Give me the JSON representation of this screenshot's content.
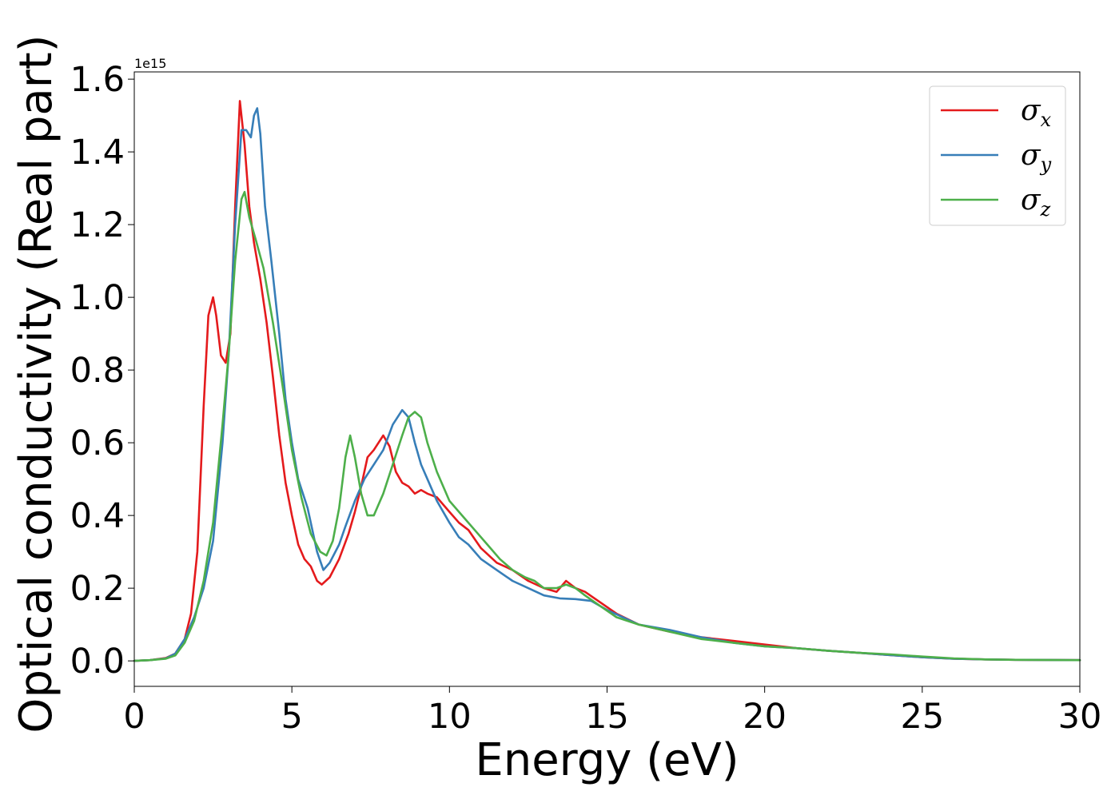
{
  "chart_data": {
    "type": "line",
    "title": "",
    "xlabel": "Energy (eV)",
    "ylabel": "Optical conductivity (Real part)",
    "y_offset_label": "1e15",
    "xlim": [
      0,
      30
    ],
    "ylim": [
      -0.07,
      1.62
    ],
    "x_ticks": [
      0,
      5,
      10,
      15,
      20,
      25,
      30
    ],
    "x_tick_labels": [
      "0",
      "5",
      "10",
      "15",
      "20",
      "25",
      "30"
    ],
    "y_ticks": [
      0.0,
      0.2,
      0.4,
      0.6,
      0.8,
      1.0,
      1.2,
      1.4,
      1.6
    ],
    "y_tick_labels": [
      "0.0",
      "0.2",
      "0.4",
      "0.6",
      "0.8",
      "1.0",
      "1.2",
      "1.4",
      "1.6"
    ],
    "grid": false,
    "legend_position": "top-right",
    "series": [
      {
        "name": "σx",
        "name_base": "σ",
        "name_sub": "x",
        "color": "#e41a1c",
        "points": [
          [
            0,
            0
          ],
          [
            0.5,
            0.002
          ],
          [
            1.0,
            0.008
          ],
          [
            1.3,
            0.02
          ],
          [
            1.6,
            0.06
          ],
          [
            1.8,
            0.13
          ],
          [
            2.0,
            0.3
          ],
          [
            2.2,
            0.7
          ],
          [
            2.35,
            0.95
          ],
          [
            2.5,
            1.0
          ],
          [
            2.6,
            0.95
          ],
          [
            2.75,
            0.84
          ],
          [
            2.9,
            0.82
          ],
          [
            3.05,
            0.9
          ],
          [
            3.2,
            1.25
          ],
          [
            3.35,
            1.54
          ],
          [
            3.5,
            1.42
          ],
          [
            3.65,
            1.25
          ],
          [
            3.8,
            1.15
          ],
          [
            4.0,
            1.05
          ],
          [
            4.2,
            0.93
          ],
          [
            4.4,
            0.78
          ],
          [
            4.6,
            0.62
          ],
          [
            4.8,
            0.49
          ],
          [
            5.0,
            0.4
          ],
          [
            5.2,
            0.32
          ],
          [
            5.4,
            0.28
          ],
          [
            5.6,
            0.26
          ],
          [
            5.8,
            0.22
          ],
          [
            5.95,
            0.21
          ],
          [
            6.2,
            0.23
          ],
          [
            6.5,
            0.28
          ],
          [
            6.8,
            0.35
          ],
          [
            7.0,
            0.41
          ],
          [
            7.2,
            0.48
          ],
          [
            7.4,
            0.56
          ],
          [
            7.6,
            0.58
          ],
          [
            7.75,
            0.6
          ],
          [
            7.9,
            0.62
          ],
          [
            8.1,
            0.59
          ],
          [
            8.3,
            0.52
          ],
          [
            8.5,
            0.49
          ],
          [
            8.7,
            0.48
          ],
          [
            8.9,
            0.46
          ],
          [
            9.1,
            0.47
          ],
          [
            9.3,
            0.46
          ],
          [
            9.6,
            0.45
          ],
          [
            10.0,
            0.41
          ],
          [
            10.3,
            0.38
          ],
          [
            10.6,
            0.36
          ],
          [
            11.0,
            0.31
          ],
          [
            11.5,
            0.27
          ],
          [
            12.0,
            0.25
          ],
          [
            12.5,
            0.22
          ],
          [
            13.0,
            0.2
          ],
          [
            13.4,
            0.19
          ],
          [
            13.7,
            0.22
          ],
          [
            14.0,
            0.2
          ],
          [
            14.3,
            0.19
          ],
          [
            14.8,
            0.16
          ],
          [
            15.3,
            0.13
          ],
          [
            16.0,
            0.1
          ],
          [
            17.0,
            0.08
          ],
          [
            18.0,
            0.065
          ],
          [
            19.0,
            0.055
          ],
          [
            20.0,
            0.045
          ],
          [
            21.0,
            0.035
          ],
          [
            22.0,
            0.028
          ],
          [
            23.0,
            0.022
          ],
          [
            24.0,
            0.016
          ],
          [
            25.0,
            0.01
          ],
          [
            26.0,
            0.006
          ],
          [
            27.0,
            0.004
          ],
          [
            28.0,
            0.003
          ],
          [
            30.0,
            0.002
          ]
        ]
      },
      {
        "name": "σy",
        "name_base": "σ",
        "name_sub": "y",
        "color": "#377eb8",
        "points": [
          [
            0,
            0
          ],
          [
            0.5,
            0.002
          ],
          [
            1.0,
            0.007
          ],
          [
            1.3,
            0.02
          ],
          [
            1.6,
            0.06
          ],
          [
            1.9,
            0.12
          ],
          [
            2.2,
            0.2
          ],
          [
            2.5,
            0.33
          ],
          [
            2.8,
            0.6
          ],
          [
            3.0,
            0.85
          ],
          [
            3.2,
            1.2
          ],
          [
            3.4,
            1.46
          ],
          [
            3.55,
            1.46
          ],
          [
            3.7,
            1.44
          ],
          [
            3.8,
            1.5
          ],
          [
            3.9,
            1.52
          ],
          [
            4.0,
            1.45
          ],
          [
            4.15,
            1.25
          ],
          [
            4.35,
            1.1
          ],
          [
            4.6,
            0.9
          ],
          [
            4.8,
            0.72
          ],
          [
            5.0,
            0.6
          ],
          [
            5.2,
            0.5
          ],
          [
            5.5,
            0.42
          ],
          [
            5.8,
            0.3
          ],
          [
            6.0,
            0.25
          ],
          [
            6.2,
            0.27
          ],
          [
            6.5,
            0.32
          ],
          [
            6.7,
            0.37
          ],
          [
            7.0,
            0.44
          ],
          [
            7.3,
            0.5
          ],
          [
            7.6,
            0.54
          ],
          [
            7.9,
            0.58
          ],
          [
            8.2,
            0.65
          ],
          [
            8.5,
            0.69
          ],
          [
            8.7,
            0.67
          ],
          [
            8.9,
            0.6
          ],
          [
            9.1,
            0.54
          ],
          [
            9.4,
            0.48
          ],
          [
            9.6,
            0.44
          ],
          [
            10.0,
            0.38
          ],
          [
            10.3,
            0.34
          ],
          [
            10.6,
            0.32
          ],
          [
            11.0,
            0.28
          ],
          [
            11.5,
            0.25
          ],
          [
            12.0,
            0.22
          ],
          [
            12.5,
            0.2
          ],
          [
            13.0,
            0.18
          ],
          [
            13.5,
            0.172
          ],
          [
            14.0,
            0.17
          ],
          [
            14.5,
            0.165
          ],
          [
            15.0,
            0.14
          ],
          [
            15.5,
            0.12
          ],
          [
            16.0,
            0.1
          ],
          [
            17.0,
            0.085
          ],
          [
            18.0,
            0.065
          ],
          [
            19.0,
            0.05
          ],
          [
            20.0,
            0.04
          ],
          [
            21.0,
            0.035
          ],
          [
            22.0,
            0.028
          ],
          [
            23.0,
            0.022
          ],
          [
            24.0,
            0.016
          ],
          [
            25.0,
            0.01
          ],
          [
            26.0,
            0.006
          ],
          [
            27.0,
            0.004
          ],
          [
            28.0,
            0.003
          ],
          [
            30.0,
            0.002
          ]
        ]
      },
      {
        "name": "σz",
        "name_base": "σ",
        "name_sub": "z",
        "color": "#4daf4a",
        "points": [
          [
            0,
            0
          ],
          [
            0.5,
            0.002
          ],
          [
            1.0,
            0.006
          ],
          [
            1.3,
            0.015
          ],
          [
            1.6,
            0.05
          ],
          [
            1.9,
            0.11
          ],
          [
            2.2,
            0.22
          ],
          [
            2.5,
            0.38
          ],
          [
            2.8,
            0.65
          ],
          [
            3.0,
            0.85
          ],
          [
            3.2,
            1.1
          ],
          [
            3.4,
            1.27
          ],
          [
            3.5,
            1.29
          ],
          [
            3.65,
            1.22
          ],
          [
            3.85,
            1.16
          ],
          [
            4.1,
            1.08
          ],
          [
            4.4,
            0.93
          ],
          [
            4.7,
            0.76
          ],
          [
            5.0,
            0.58
          ],
          [
            5.3,
            0.45
          ],
          [
            5.6,
            0.35
          ],
          [
            5.9,
            0.3
          ],
          [
            6.1,
            0.29
          ],
          [
            6.3,
            0.33
          ],
          [
            6.5,
            0.42
          ],
          [
            6.7,
            0.56
          ],
          [
            6.85,
            0.62
          ],
          [
            7.0,
            0.56
          ],
          [
            7.2,
            0.46
          ],
          [
            7.4,
            0.4
          ],
          [
            7.6,
            0.4
          ],
          [
            7.9,
            0.46
          ],
          [
            8.2,
            0.54
          ],
          [
            8.5,
            0.62
          ],
          [
            8.7,
            0.67
          ],
          [
            8.9,
            0.685
          ],
          [
            9.1,
            0.67
          ],
          [
            9.3,
            0.6
          ],
          [
            9.6,
            0.52
          ],
          [
            10.0,
            0.44
          ],
          [
            10.4,
            0.4
          ],
          [
            10.8,
            0.36
          ],
          [
            11.2,
            0.32
          ],
          [
            11.6,
            0.28
          ],
          [
            12.0,
            0.25
          ],
          [
            12.4,
            0.23
          ],
          [
            12.7,
            0.22
          ],
          [
            13.0,
            0.2
          ],
          [
            13.4,
            0.2
          ],
          [
            13.7,
            0.21
          ],
          [
            14.0,
            0.2
          ],
          [
            14.3,
            0.18
          ],
          [
            14.8,
            0.15
          ],
          [
            15.3,
            0.12
          ],
          [
            16.0,
            0.1
          ],
          [
            17.0,
            0.08
          ],
          [
            18.0,
            0.06
          ],
          [
            19.0,
            0.05
          ],
          [
            20.0,
            0.04
          ],
          [
            21.0,
            0.035
          ],
          [
            22.0,
            0.028
          ],
          [
            23.0,
            0.022
          ],
          [
            24.0,
            0.018
          ],
          [
            25.0,
            0.012
          ],
          [
            26.0,
            0.007
          ],
          [
            27.0,
            0.004
          ],
          [
            28.0,
            0.003
          ],
          [
            30.0,
            0.002
          ]
        ]
      }
    ]
  }
}
